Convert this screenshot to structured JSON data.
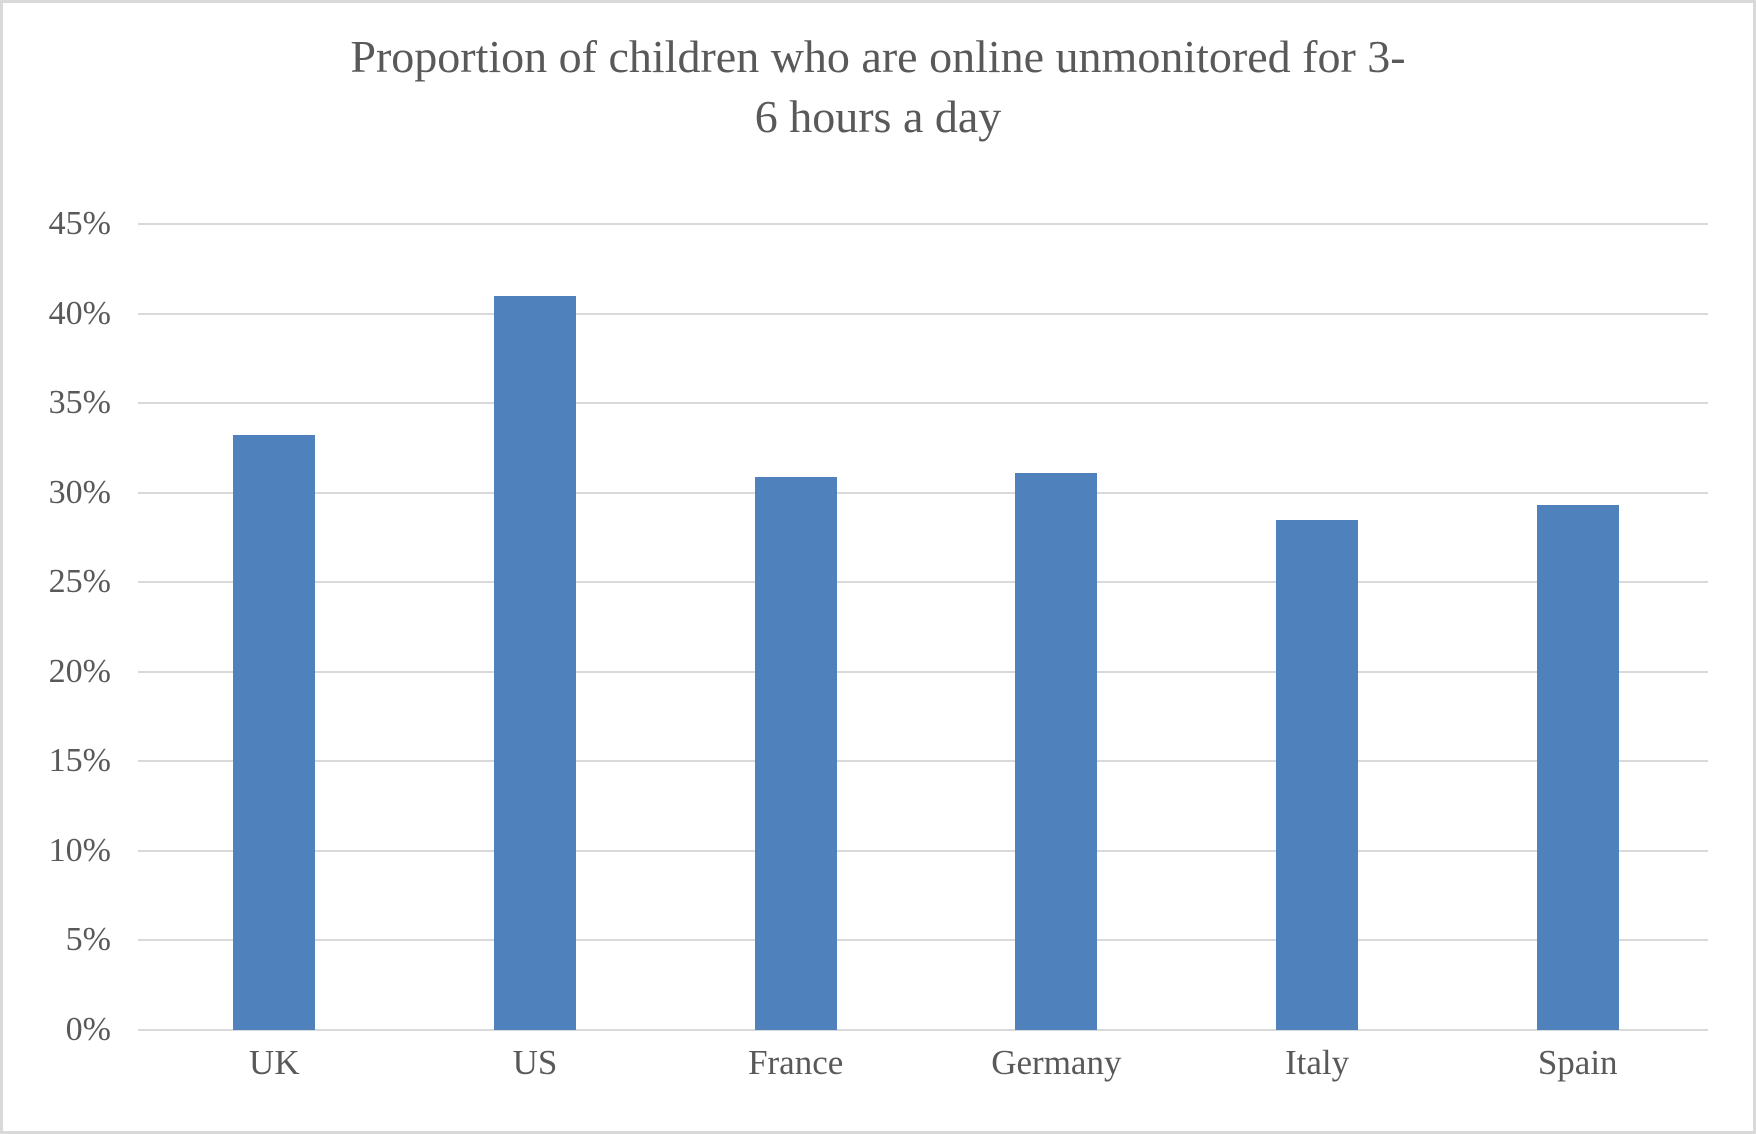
{
  "chart_data": {
    "type": "bar",
    "title": "Proportion of children who are online unmonitored for 3-6 hours a day",
    "title_lines": [
      "Proportion of children who are online unmonitored for 3-",
      "6 hours a day"
    ],
    "categories": [
      "UK",
      "US",
      "France",
      "Germany",
      "Italy",
      "Spain"
    ],
    "values": [
      33.2,
      41.0,
      30.9,
      31.1,
      28.5,
      29.3
    ],
    "value_unit": "%",
    "xlabel": "",
    "ylabel": "",
    "ylim": [
      0,
      45
    ],
    "ytick_step": 5,
    "ytick_labels": [
      "0%",
      "5%",
      "10%",
      "15%",
      "20%",
      "25%",
      "30%",
      "35%",
      "40%",
      "45%"
    ],
    "grid": "horizontal",
    "legend": "none",
    "colors": {
      "bar": "#4f81bd",
      "gridline": "#d9d9d9",
      "text": "#595959",
      "background": "#ffffff",
      "frame_border": "#d9d9d9"
    }
  }
}
